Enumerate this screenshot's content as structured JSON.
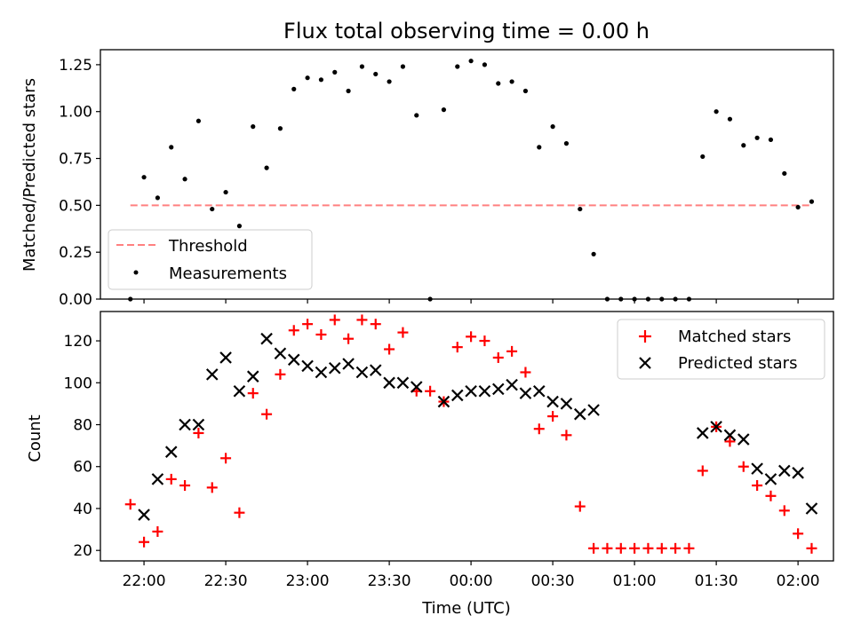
{
  "chart_data": [
    {
      "type": "scatter",
      "title": "Flux total observing time = 0.00 h",
      "xlabel": "",
      "ylabel": "Matched/Predicted stars",
      "ylim": [
        0,
        1.33
      ],
      "yticks": [
        "0.00",
        "0.25",
        "0.50",
        "0.75",
        "1.00",
        "1.25"
      ],
      "legend": {
        "position": "lower-left",
        "entries": [
          "Threshold",
          "Measurements"
        ]
      },
      "threshold": {
        "name": "Threshold",
        "y": 0.5,
        "x_start": "21:55",
        "x_end": "02:05",
        "color": "#ff8080",
        "style": "dashed"
      },
      "series": [
        {
          "name": "Measurements",
          "color": "#000000",
          "x": [
            "21:55",
            "22:00",
            "22:05",
            "22:10",
            "22:15",
            "22:20",
            "22:25",
            "22:30",
            "22:35",
            "22:40",
            "22:45",
            "22:50",
            "22:55",
            "23:00",
            "23:05",
            "23:10",
            "23:15",
            "23:20",
            "23:25",
            "23:30",
            "23:35",
            "23:40",
            "23:45",
            "23:50",
            "23:55",
            "00:00",
            "00:05",
            "00:10",
            "00:15",
            "00:20",
            "00:25",
            "00:30",
            "00:35",
            "00:40",
            "00:45",
            "00:50",
            "00:55",
            "01:00",
            "01:05",
            "01:10",
            "01:15",
            "01:20",
            "01:25",
            "01:30",
            "01:35",
            "01:40",
            "01:45",
            "01:50",
            "01:55",
            "02:00",
            "02:05"
          ],
          "y": [
            0.0,
            0.65,
            0.54,
            0.81,
            0.64,
            0.95,
            0.48,
            0.57,
            0.39,
            0.92,
            0.7,
            0.91,
            1.12,
            1.18,
            1.17,
            1.21,
            1.11,
            1.24,
            1.2,
            1.16,
            1.24,
            0.98,
            0.0,
            1.01,
            1.24,
            1.27,
            1.25,
            1.15,
            1.16,
            1.11,
            0.81,
            0.92,
            0.83,
            0.48,
            0.24,
            0.0,
            0.0,
            0.0,
            0.0,
            0.0,
            0.0,
            0.0,
            0.76,
            1.0,
            0.96,
            0.82,
            0.86,
            0.85,
            0.67,
            0.49,
            0.52
          ]
        }
      ]
    },
    {
      "type": "scatter",
      "title": "",
      "xlabel": "Time (UTC)",
      "ylabel": "Count",
      "xlim": [
        "21:44",
        "02:13"
      ],
      "ylim": [
        15,
        134
      ],
      "yticks": [
        "20",
        "40",
        "60",
        "80",
        "100",
        "120"
      ],
      "xticks": [
        "22:00",
        "22:30",
        "23:00",
        "23:30",
        "00:00",
        "00:30",
        "01:00",
        "01:30",
        "02:00"
      ],
      "legend": {
        "position": "top-right",
        "entries": [
          "Matched stars",
          "Predicted stars"
        ]
      },
      "series": [
        {
          "name": "Matched stars",
          "marker": "+",
          "color": "#ff0000",
          "x": [
            "21:55",
            "22:00",
            "22:05",
            "22:10",
            "22:15",
            "22:20",
            "22:25",
            "22:30",
            "22:35",
            "22:40",
            "22:45",
            "22:50",
            "22:55",
            "23:00",
            "23:05",
            "23:10",
            "23:15",
            "23:20",
            "23:25",
            "23:30",
            "23:35",
            "23:40",
            "23:45",
            "23:50",
            "23:55",
            "00:00",
            "00:05",
            "00:10",
            "00:15",
            "00:20",
            "00:25",
            "00:30",
            "00:35",
            "00:40",
            "00:45",
            "00:50",
            "00:55",
            "01:00",
            "01:05",
            "01:10",
            "01:15",
            "01:20",
            "01:25",
            "01:30",
            "01:35",
            "01:40",
            "01:45",
            "01:50",
            "01:55",
            "02:00",
            "02:05"
          ],
          "y": [
            42,
            24,
            29,
            54,
            51,
            76,
            50,
            64,
            38,
            95,
            85,
            104,
            125,
            128,
            123,
            130,
            121,
            130,
            128,
            116,
            124,
            96,
            96,
            91,
            117,
            122,
            120,
            112,
            115,
            105,
            78,
            84,
            75,
            41,
            21,
            21,
            21,
            21,
            21,
            21,
            21,
            21,
            58,
            79,
            72,
            60,
            51,
            46,
            39,
            28,
            21
          ]
        },
        {
          "name": "Predicted stars",
          "marker": "x",
          "color": "#000000",
          "x": [
            "22:00",
            "22:05",
            "22:10",
            "22:15",
            "22:20",
            "22:25",
            "22:30",
            "22:35",
            "22:40",
            "22:45",
            "22:50",
            "22:55",
            "23:00",
            "23:05",
            "23:10",
            "23:15",
            "23:20",
            "23:25",
            "23:30",
            "23:35",
            "23:40",
            "23:50",
            "23:55",
            "00:00",
            "00:05",
            "00:10",
            "00:15",
            "00:20",
            "00:25",
            "00:30",
            "00:35",
            "00:40",
            "00:45",
            "01:25",
            "01:30",
            "01:35",
            "01:40",
            "01:45",
            "01:50",
            "01:55",
            "02:00",
            "02:05"
          ],
          "y": [
            37,
            54,
            67,
            80,
            80,
            104,
            112,
            96,
            103,
            121,
            114,
            111,
            108,
            105,
            107,
            109,
            105,
            106,
            100,
            100,
            98,
            91,
            94,
            96,
            96,
            97,
            99,
            95,
            96,
            91,
            90,
            85,
            87,
            76,
            79,
            75,
            73,
            59,
            54,
            58,
            57,
            40
          ]
        }
      ]
    }
  ]
}
